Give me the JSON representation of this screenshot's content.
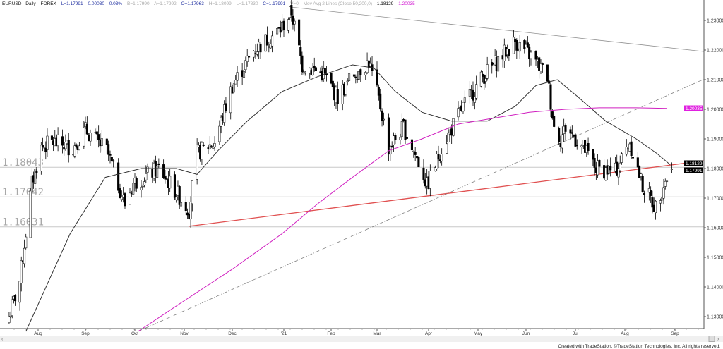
{
  "header": {
    "symbol": "EURUSD - Daily",
    "exchange": "FOREX",
    "last": "L=1.17991",
    "change": "0.00030",
    "change_pct": "0.03%",
    "bid": "B=1.17990",
    "ask": "A=1.17992",
    "open": "O=1.17963",
    "high": "H=1.18099",
    "low": "L=1.17830",
    "close": "C=1.17991",
    "volume": "V=0",
    "study": "Mov Avg 2 Lines (Close,50,200,0)",
    "ma1_value": "1.18129",
    "ma2_value": "1.20035"
  },
  "chart_data": {
    "type": "candlestick",
    "title": "EURUSD - Daily",
    "ylim": [
      1.1225,
      1.2369
    ],
    "y_ticks": [
      "1.23000",
      "1.22000",
      "1.21000",
      "1.20000",
      "1.19000",
      "1.18000",
      "1.17000",
      "1.16000",
      "1.15000",
      "1.14000",
      "1.13000"
    ],
    "x_ticks": [
      "Aug",
      "Sep",
      "Oct",
      "Nov",
      "Dec",
      "'21",
      "Feb",
      "Mar",
      "Apr",
      "May",
      "Jun",
      "Jul",
      "Aug",
      "Sep"
    ],
    "x_tick_dates": [
      "2020-08-01",
      "2020-09-01",
      "2020-10-01",
      "2020-11-01",
      "2020-12-01",
      "2021-01-01",
      "2021-02-01",
      "2021-03-01",
      "2021-04-01",
      "2021-05-01",
      "2021-06-01",
      "2021-07-01",
      "2021-08-01",
      "2021-09-01"
    ],
    "grid": false,
    "close_path": [
      [
        "2020-07-13",
        1.13
      ],
      [
        "2020-07-20",
        1.142
      ],
      [
        "2020-07-28",
        1.175
      ],
      [
        "2020-08-03",
        1.187
      ],
      [
        "2020-08-10",
        1.189
      ],
      [
        "2020-08-24",
        1.187
      ],
      [
        "2020-09-01",
        1.193
      ],
      [
        "2020-09-14",
        1.186
      ],
      [
        "2020-09-25",
        1.168
      ],
      [
        "2020-09-30",
        1.175
      ],
      [
        "2020-10-16",
        1.18
      ],
      [
        "2020-11-04",
        1.166
      ],
      [
        "2020-11-09",
        1.185
      ],
      [
        "2020-11-20",
        1.189
      ],
      [
        "2020-12-01",
        1.208
      ],
      [
        "2020-12-14",
        1.22
      ],
      [
        "2020-12-30",
        1.227
      ],
      [
        "2021-01-06",
        1.233
      ],
      [
        "2021-01-13",
        1.215
      ],
      [
        "2021-01-27",
        1.212
      ],
      [
        "2021-02-05",
        1.204
      ],
      [
        "2021-02-15",
        1.212
      ],
      [
        "2021-02-24",
        1.216
      ],
      [
        "2021-03-03",
        1.201
      ],
      [
        "2021-03-08",
        1.187
      ],
      [
        "2021-03-17",
        1.194
      ],
      [
        "2021-03-29",
        1.178
      ],
      [
        "2021-03-31",
        1.174
      ],
      [
        "2021-04-09",
        1.187
      ],
      [
        "2021-04-21",
        1.2
      ],
      [
        "2021-05-04",
        1.211
      ],
      [
        "2021-05-13",
        1.216
      ],
      [
        "2021-05-25",
        1.223
      ],
      [
        "2021-06-04",
        1.218
      ],
      [
        "2021-06-14",
        1.211
      ],
      [
        "2021-06-18",
        1.194
      ],
      [
        "2021-06-22",
        1.19
      ],
      [
        "2021-06-25",
        1.194
      ],
      [
        "2021-07-06",
        1.187
      ],
      [
        "2021-07-14",
        1.18
      ],
      [
        "2021-07-26",
        1.179
      ],
      [
        "2021-08-04",
        1.189
      ],
      [
        "2021-08-12",
        1.174
      ],
      [
        "2021-08-20",
        1.167
      ],
      [
        "2021-08-25",
        1.175
      ],
      [
        "2021-08-30",
        1.1799
      ]
    ],
    "sma50": [
      [
        "2020-07-24",
        1.125
      ],
      [
        "2020-08-22",
        1.158
      ],
      [
        "2020-09-13",
        1.177
      ],
      [
        "2020-10-05",
        1.18
      ],
      [
        "2020-10-27",
        1.18
      ],
      [
        "2020-11-09",
        1.178
      ],
      [
        "2020-11-22",
        1.186
      ],
      [
        "2020-12-10",
        1.196
      ],
      [
        "2020-12-31",
        1.206
      ],
      [
        "2021-01-23",
        1.211
      ],
      [
        "2021-02-14",
        1.215
      ],
      [
        "2021-02-27",
        1.214
      ],
      [
        "2021-03-12",
        1.206
      ],
      [
        "2021-03-28",
        1.199
      ],
      [
        "2021-04-15",
        1.196
      ],
      [
        "2021-05-07",
        1.196
      ],
      [
        "2021-05-25",
        1.201
      ],
      [
        "2021-06-07",
        1.208
      ],
      [
        "2021-06-20",
        1.21
      ],
      [
        "2021-07-03",
        1.204
      ],
      [
        "2021-07-20",
        1.196
      ],
      [
        "2021-08-08",
        1.19
      ],
      [
        "2021-08-21",
        1.185
      ],
      [
        "2021-08-29",
        1.1813
      ]
    ],
    "sma200": [
      [
        "2020-10-03",
        1.125
      ],
      [
        "2020-10-31",
        1.135
      ],
      [
        "2020-12-01",
        1.146
      ],
      [
        "2020-12-31",
        1.158
      ],
      [
        "2021-01-23",
        1.168
      ],
      [
        "2021-02-14",
        1.177
      ],
      [
        "2021-03-08",
        1.186
      ],
      [
        "2021-03-28",
        1.19
      ],
      [
        "2021-04-19",
        1.195
      ],
      [
        "2021-05-11",
        1.197
      ],
      [
        "2021-06-03",
        1.199
      ],
      [
        "2021-06-25",
        1.2
      ],
      [
        "2021-07-16",
        1.2005
      ],
      [
        "2021-08-08",
        1.2005
      ],
      [
        "2021-08-27",
        1.2003
      ]
    ],
    "trendlines": [
      {
        "color": "#909090",
        "style": "solid",
        "from": [
          "2021-01-06",
          1.2345
        ],
        "to": [
          "2021-09-19",
          1.2195
        ]
      },
      {
        "color": "#e05050",
        "style": "solid",
        "from": [
          "2020-11-04",
          1.1605
        ],
        "to": [
          "2021-09-19",
          1.1826
        ]
      },
      {
        "color": "#808080",
        "style": "dashdot",
        "from": [
          "2020-10-03",
          1.125
        ],
        "to": [
          "2021-09-19",
          1.2102
        ]
      }
    ],
    "horizontal_levels": [
      {
        "value": 1.18043,
        "label": "1.18043"
      },
      {
        "value": 1.17042,
        "label": "1.17042"
      },
      {
        "value": 1.16031,
        "label": "1.16031"
      }
    ],
    "price_markers": [
      {
        "label": "1.20035",
        "value": 1.20035,
        "color": "#e020e0"
      },
      {
        "label": "1.18129",
        "value": 1.18129,
        "color": "#000000"
      },
      {
        "label": "1.17991",
        "value": 1.17991,
        "color": "#000000"
      }
    ],
    "colors": {
      "sma50": "#333333",
      "sma200": "#d020c0",
      "up": "#ffffff",
      "down": "#000000"
    }
  },
  "footer": "Created with TradeStation. ©TradeStation Technologies, Inc. All rights reserved."
}
